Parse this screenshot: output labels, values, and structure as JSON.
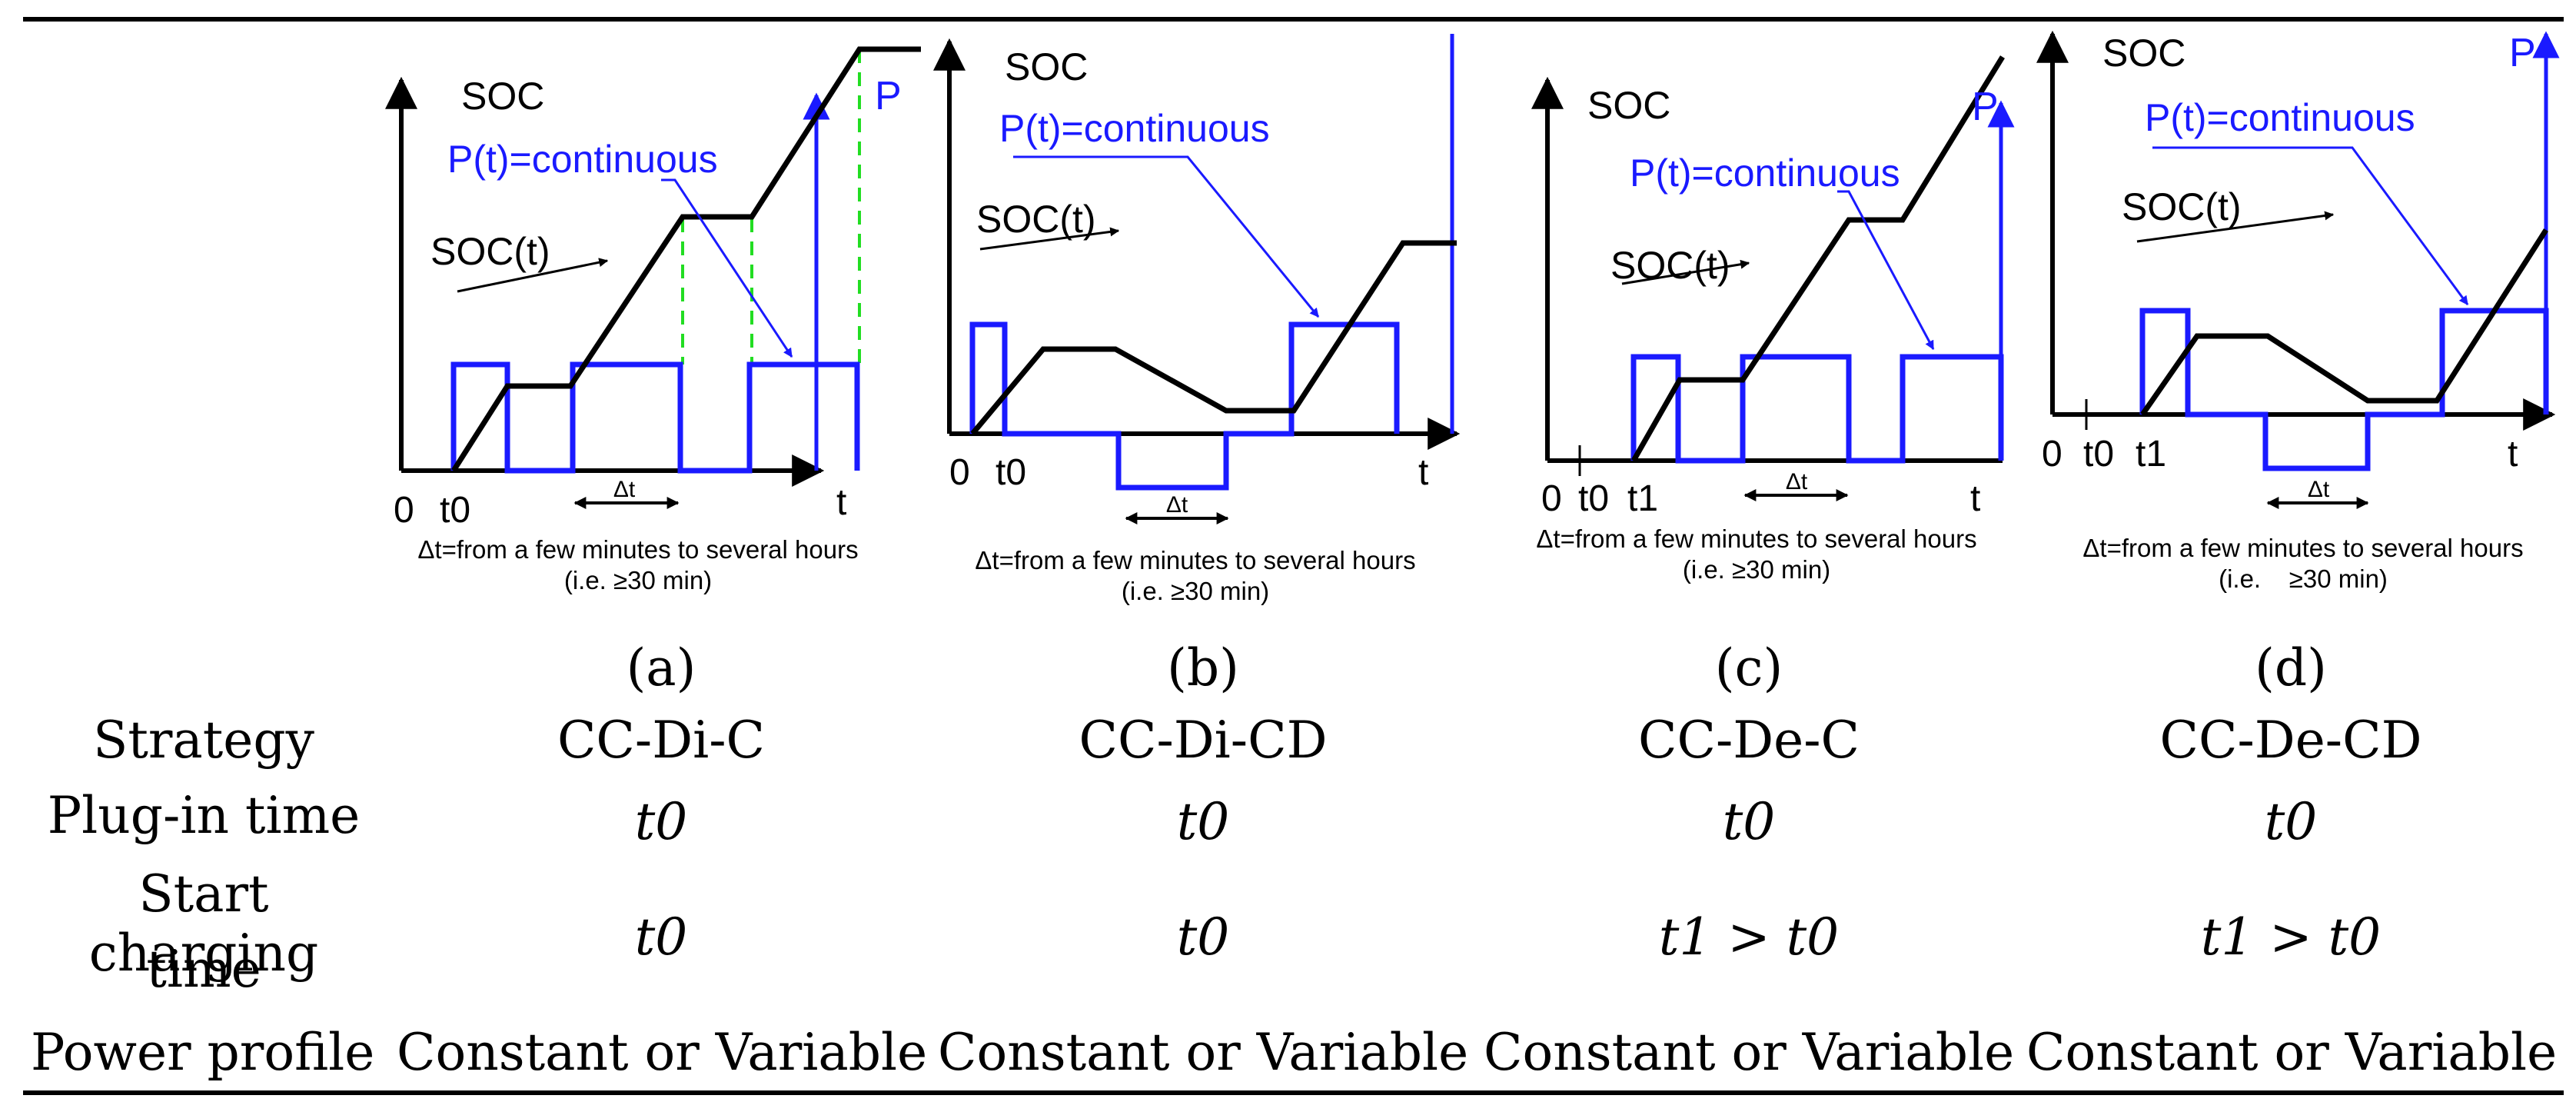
{
  "colors": {
    "soc_line": "#000000",
    "power_line": "#1a1aff",
    "guide_lines": "#22dd22"
  },
  "panels": [
    {
      "id": "a",
      "soc_label": "SOC",
      "soct_label": "SOC(t)",
      "pt_label": "P(t)=continuous",
      "p_label": "P",
      "x_ticks": [
        "0",
        "t0",
        "t"
      ],
      "dt_label": "Δt",
      "note_line1": "Δt=from a few minutes to several hours",
      "note_line2": "(i.e. ≥30 min)",
      "caption": "(a)"
    },
    {
      "id": "b",
      "soc_label": "SOC",
      "soct_label": "SOC(t)",
      "pt_label": "P(t)=continuous",
      "p_label": "P",
      "x_ticks": [
        "0",
        "t0",
        "t"
      ],
      "dt_label": "Δt",
      "note_line1": "Δt=from a few minutes to several hours",
      "note_line2": "(i.e. ≥30 min)",
      "caption": "(b)"
    },
    {
      "id": "c",
      "soc_label": "SOC",
      "soct_label": "SOC(t)",
      "pt_label": "P(t)=continuous",
      "p_label": "P",
      "x_ticks": [
        "0",
        "t0",
        "t1",
        "t"
      ],
      "dt_label": "Δt",
      "note_line1": "Δt=from a few minutes to several hours",
      "note_line2": "(i.e. ≥30 min)",
      "caption": "(c)"
    },
    {
      "id": "d",
      "soc_label": "SOC",
      "soct_label": "SOC(t)",
      "pt_label": "P(t)=continuous",
      "p_label": "P",
      "x_ticks": [
        "0",
        "t0",
        "t1",
        "t"
      ],
      "dt_label": "Δt",
      "note_line1": "Δt=from a few minutes to several hours",
      "note_line2": "(i.e.    ≥30 min)",
      "caption": "(d)"
    }
  ],
  "table": {
    "strategy_label": "Strategy",
    "strategies": [
      "CC-Di-C",
      "CC-Di-CD",
      "CC-De-C",
      "CC-De-CD"
    ],
    "plugin_label": "Plug-in time",
    "plugin_times": [
      "t0",
      "t0",
      "t0",
      "t0"
    ],
    "start_label_line1": "Start charging",
    "start_label_line2": "time",
    "start_times": [
      "t0",
      "t0",
      "t1 > t0",
      "t1 > t0"
    ],
    "power_label": "Power profile",
    "power_profiles": [
      "Constant or Variable",
      "Constant or Variable",
      "Constant or Variable",
      "Constant or Variable"
    ]
  }
}
